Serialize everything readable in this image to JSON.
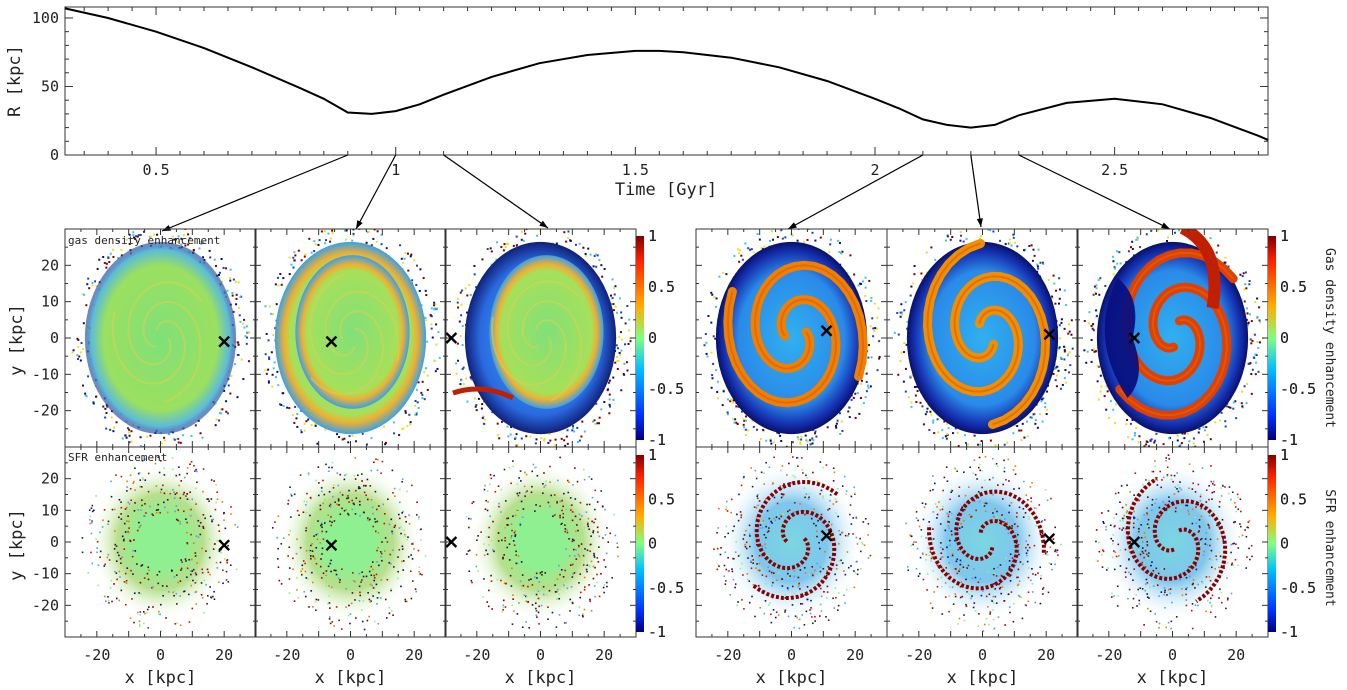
{
  "top_plot": {
    "xlabel": "Time [Gyr]",
    "ylabel": "R [kpc]",
    "xlim": [
      0.31,
      2.82
    ],
    "ylim": [
      0,
      108
    ],
    "xticks": [
      0.5,
      1,
      1.5,
      2,
      2.5
    ],
    "xtick_labels": [
      "0.5",
      "1",
      "1.5",
      "2",
      "2.5"
    ],
    "yticks": [
      0,
      50,
      100
    ],
    "ytick_labels": [
      "0",
      "50",
      "100"
    ],
    "snapshot_times": [
      0.9,
      1.0,
      1.1,
      2.1,
      2.2,
      2.3
    ]
  },
  "chart_data": {
    "type": "line",
    "x": [
      0.31,
      0.4,
      0.5,
      0.6,
      0.7,
      0.8,
      0.85,
      0.9,
      0.95,
      1.0,
      1.05,
      1.1,
      1.2,
      1.3,
      1.4,
      1.5,
      1.55,
      1.6,
      1.7,
      1.8,
      1.9,
      2.0,
      2.05,
      2.1,
      2.15,
      2.2,
      2.25,
      2.3,
      2.4,
      2.5,
      2.6,
      2.7,
      2.8,
      2.82
    ],
    "values": [
      107,
      100,
      90,
      78,
      64,
      49,
      41,
      31,
      30,
      32,
      37,
      44,
      57,
      67,
      73,
      76,
      76,
      75,
      71,
      64,
      54,
      41,
      34,
      26,
      22,
      20,
      22,
      29,
      38,
      41,
      37,
      27,
      14,
      11
    ],
    "xlabel": "Time [Gyr]",
    "ylabel": "R [kpc]",
    "xlim": [
      0.31,
      2.82
    ],
    "ylim": [
      0,
      108
    ],
    "grid": false
  },
  "panels": {
    "row_labels": [
      "gas density enhancement",
      "SFR enhancement"
    ],
    "ylabel": "y [kpc]",
    "xlabel": "x [kpc]",
    "xticks": [
      -20,
      0,
      20
    ],
    "xtick_labels": [
      "-20",
      "0",
      "20"
    ],
    "yticks": [
      20,
      10,
      0,
      -10,
      -20
    ],
    "ytick_labels": [
      "20",
      "10",
      "0",
      "-10",
      "-20"
    ],
    "lim": [
      -30,
      30
    ],
    "markers": [
      {
        "x": 20,
        "y": -1
      },
      {
        "x": -6,
        "y": -1
      },
      {
        "x": -28,
        "y": 0
      },
      {
        "x": 11,
        "y": 2
      },
      {
        "x": 21,
        "y": 1
      },
      {
        "x": -12,
        "y": 0
      }
    ]
  },
  "colorbar": {
    "ticks": [
      "1",
      "0.5",
      "0",
      "-0.5",
      "-1"
    ],
    "labels": [
      "Gas density enhancement",
      "SFR enhancement"
    ],
    "colors": [
      "#7f0000",
      "#ff3000",
      "#ffb000",
      "#80ff80",
      "#00c0ff",
      "#0050ff",
      "#00007f"
    ]
  }
}
